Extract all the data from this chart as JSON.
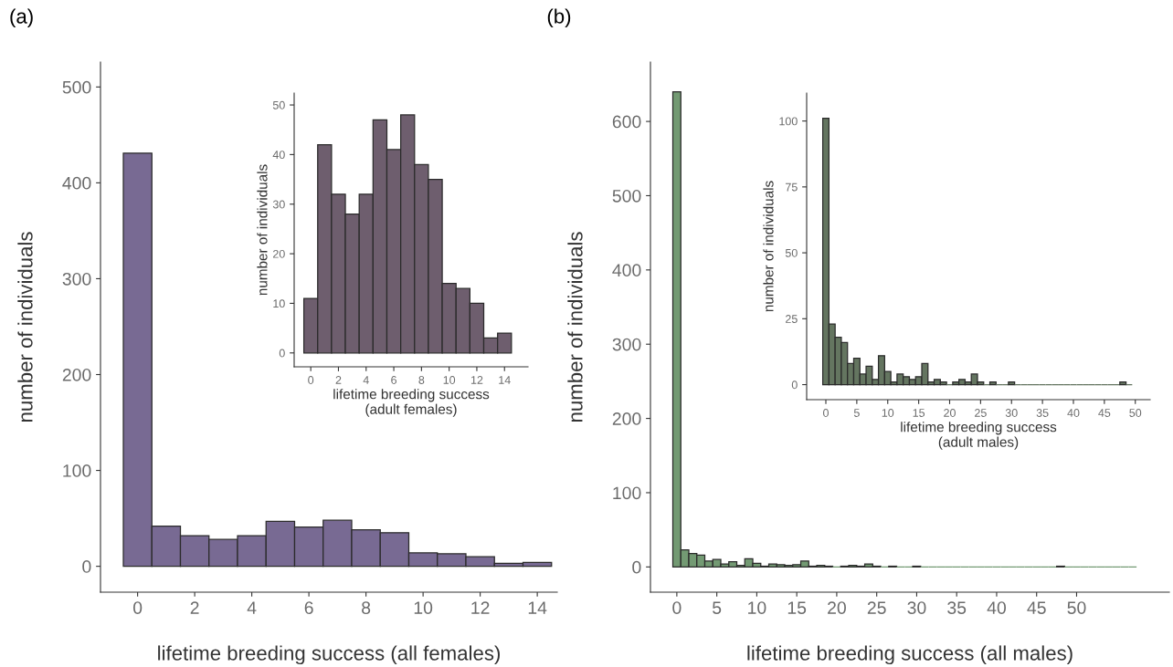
{
  "chart_data": [
    {
      "type": "histogram",
      "title": "(a)",
      "xlabel": "lifetime breeding success (all females)",
      "ylabel": "number of individuals",
      "color": "#786a93",
      "bins": [
        -0.5,
        0.5,
        1.5,
        2.5,
        3.5,
        4.5,
        5.5,
        6.5,
        7.5,
        8.5,
        9.5,
        10.5,
        11.5,
        12.5,
        13.5,
        14.5
      ],
      "values": [
        431,
        42,
        32,
        28,
        32,
        47,
        41,
        48,
        38,
        35,
        14,
        13,
        10,
        3,
        4
      ],
      "xlim": [
        -1.3,
        14.7
      ],
      "xticks": [
        0,
        2,
        4,
        6,
        8,
        10,
        12,
        14
      ],
      "ylim": [
        -27,
        526
      ],
      "yticks": [
        0,
        100,
        200,
        300,
        400,
        500
      ],
      "grid": false
    },
    {
      "type": "histogram",
      "xlabel": "lifetime breeding success\n(adult females)",
      "ylabel": "number of individuals",
      "color": "#6e5e6e",
      "bins": [
        -0.5,
        0.5,
        1.5,
        2.5,
        3.5,
        4.5,
        5.5,
        6.5,
        7.5,
        8.5,
        9.5,
        10.5,
        11.5,
        12.5,
        13.5,
        14.5
      ],
      "values": [
        11,
        42,
        32,
        28,
        32,
        47,
        41,
        48,
        38,
        35,
        14,
        13,
        10,
        3,
        4
      ],
      "xlim": [
        -1.2,
        15.7
      ],
      "xticks": [
        0,
        2,
        4,
        6,
        8,
        10,
        12,
        14
      ],
      "ylim": [
        -2.8,
        52.4
      ],
      "yticks": [
        0,
        10,
        20,
        30,
        40,
        50
      ],
      "grid": false
    },
    {
      "type": "histogram",
      "title": "(b)",
      "xlabel": "lifetime breeding success (all males)",
      "ylabel": "number of individuals",
      "color": "#739a73",
      "bins": [
        -0.5,
        0.5,
        1.5,
        2.5,
        3.5,
        4.5,
        5.5,
        6.5,
        7.5,
        8.5,
        9.5,
        10.5,
        11.5,
        12.5,
        13.5,
        14.5,
        15.5,
        16.5,
        17.5,
        18.5,
        19.5,
        20.5,
        21.5,
        22.5,
        23.5,
        24.5,
        25.5,
        26.5,
        27.5,
        28.5,
        29.5,
        30.5,
        31.5,
        32.5,
        33.5,
        34.5,
        35.5,
        36.5,
        37.5,
        38.5,
        39.5,
        40.5,
        41.5,
        42.5,
        43.5,
        44.5,
        45.5,
        46.5,
        47.5,
        48.5,
        49.5,
        50.5,
        51.5,
        52.5,
        53.5,
        54.5,
        55.5,
        56.5,
        57.5
      ],
      "values": [
        640,
        23,
        18,
        16,
        8,
        10,
        4,
        7,
        2,
        11,
        5,
        1,
        4,
        3,
        2,
        3,
        8,
        1,
        2,
        1,
        0,
        1,
        2,
        1,
        4,
        1,
        0,
        1,
        0,
        0,
        1,
        0,
        0,
        0,
        0,
        0,
        0,
        0,
        0,
        0,
        0,
        0,
        0,
        0,
        0,
        0,
        0,
        0,
        1,
        0,
        0,
        0,
        0,
        0,
        0,
        0,
        0,
        0
      ],
      "xlim": [
        -3.3,
        61.6
      ],
      "xticks": [
        0,
        5,
        10,
        15,
        20,
        25,
        30,
        35,
        40,
        45,
        50
      ],
      "ylim": [
        -34,
        680
      ],
      "yticks": [
        0,
        100,
        200,
        300,
        400,
        500,
        600
      ],
      "grid": false
    },
    {
      "type": "histogram",
      "xlabel": "lifetime breeding success\n(adult males)",
      "ylabel": "number of individuals",
      "color": "#647560",
      "bins": [
        -0.5,
        0.5,
        1.5,
        2.5,
        3.5,
        4.5,
        5.5,
        6.5,
        7.5,
        8.5,
        9.5,
        10.5,
        11.5,
        12.5,
        13.5,
        14.5,
        15.5,
        16.5,
        17.5,
        18.5,
        19.5,
        20.5,
        21.5,
        22.5,
        23.5,
        24.5,
        25.5,
        26.5,
        27.5,
        28.5,
        29.5,
        30.5,
        31.5,
        32.5,
        33.5,
        34.5,
        35.5,
        36.5,
        37.5,
        38.5,
        39.5,
        40.5,
        41.5,
        42.5,
        43.5,
        44.5,
        45.5,
        46.5,
        47.5,
        48.5,
        49.5
      ],
      "values": [
        101,
        23,
        18,
        16,
        8,
        10,
        4,
        7,
        2,
        11,
        5,
        1,
        4,
        3,
        2,
        3,
        8,
        1,
        2,
        1,
        0,
        1,
        2,
        1,
        4,
        1,
        0,
        1,
        0,
        0,
        1,
        0,
        0,
        0,
        0,
        0,
        0,
        0,
        0,
        0,
        0,
        0,
        0,
        0,
        0,
        0,
        0,
        0,
        1,
        0
      ],
      "xlim": [
        -3.1,
        52.4
      ],
      "xticks": [
        0,
        5,
        10,
        15,
        20,
        25,
        30,
        35,
        40,
        45,
        50
      ],
      "ylim": [
        -5.7,
        110.6
      ],
      "yticks": [
        0,
        25,
        50,
        75,
        100
      ],
      "grid": false
    }
  ]
}
